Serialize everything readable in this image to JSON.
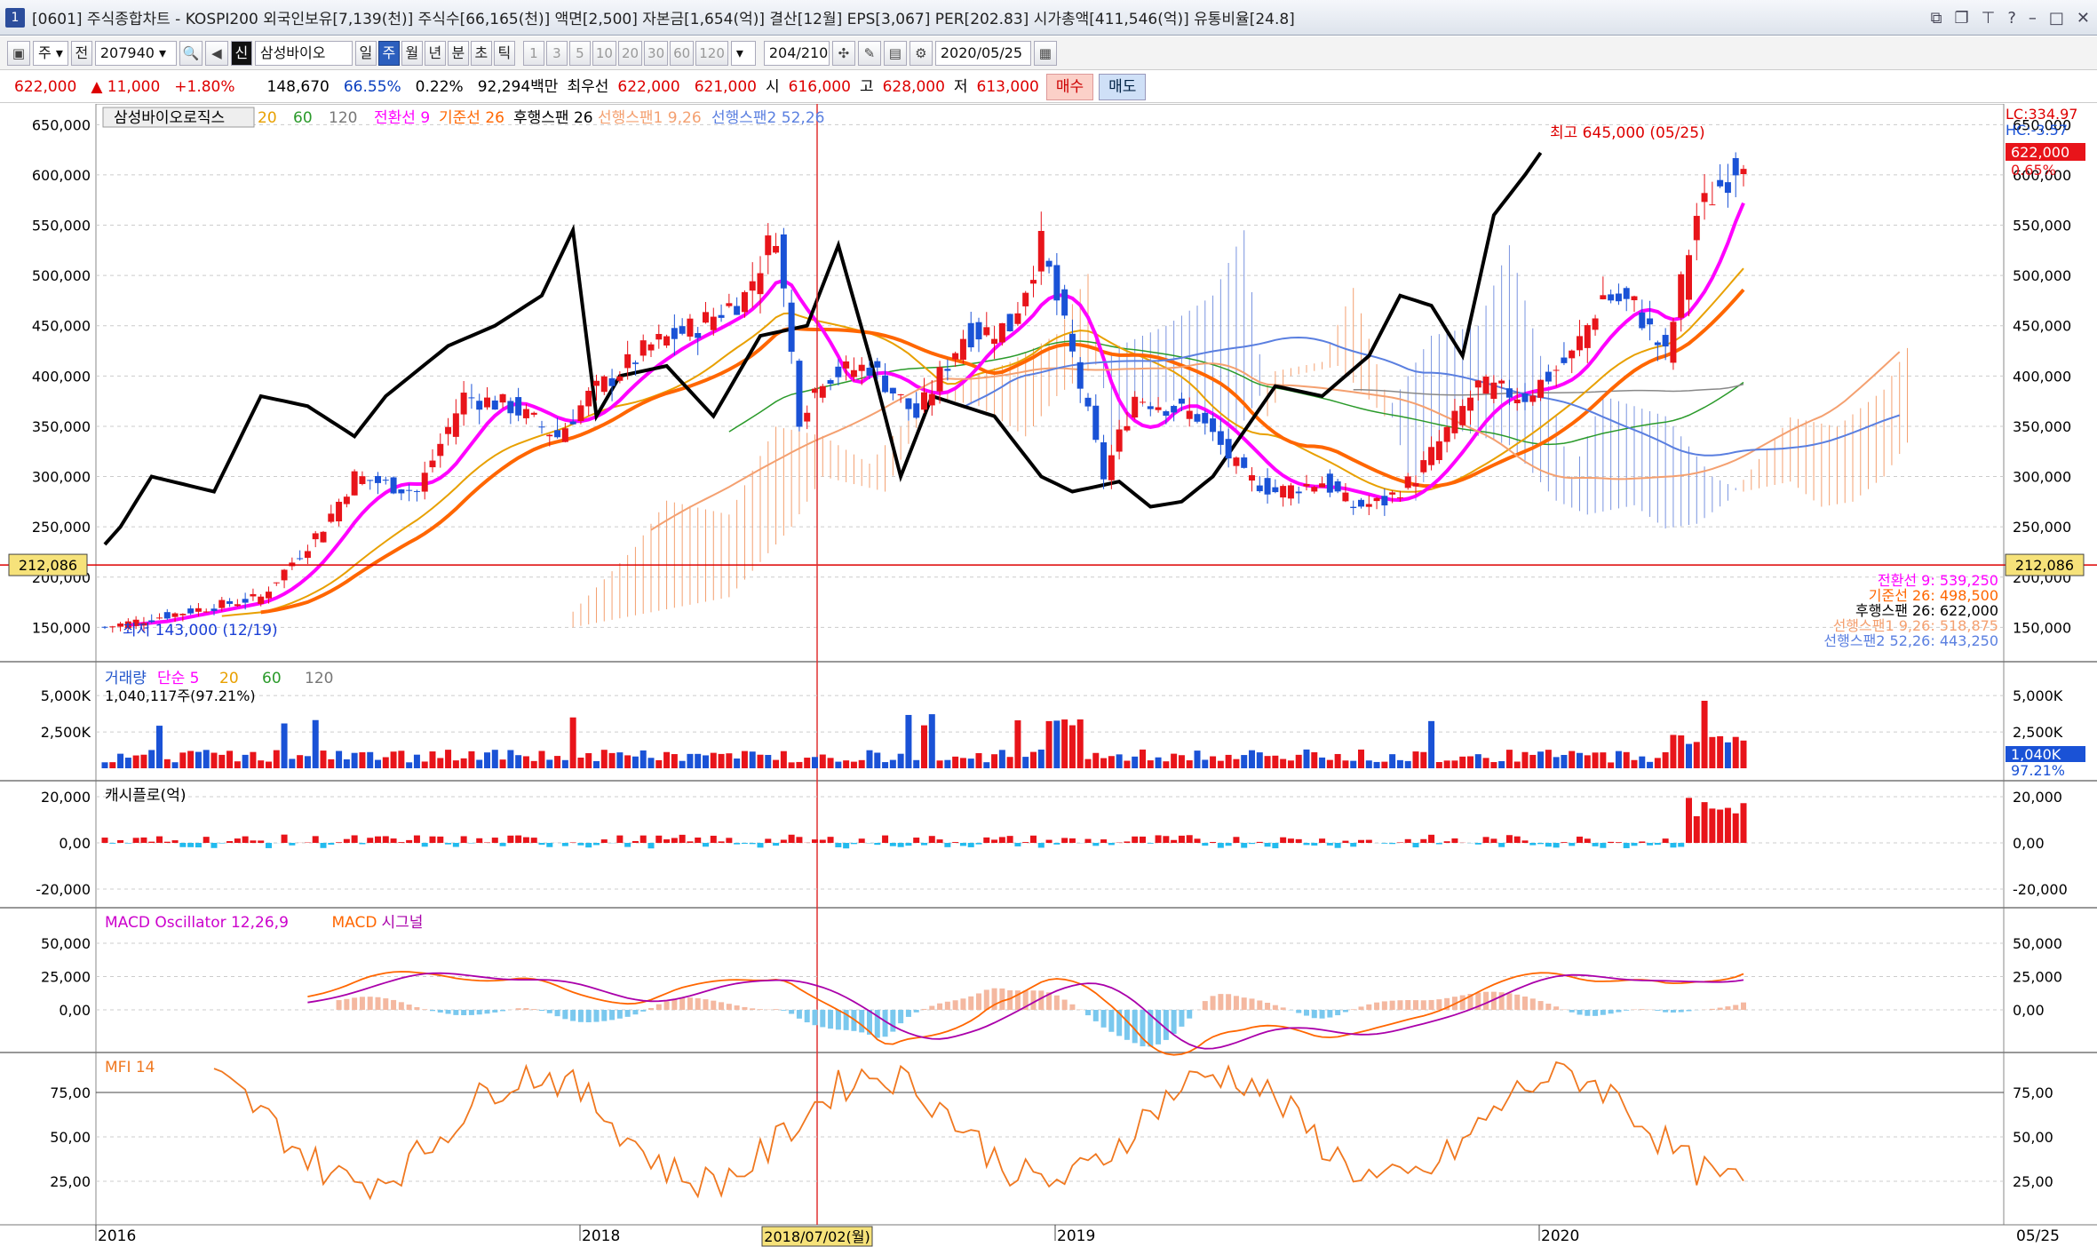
{
  "window": {
    "num": "1",
    "title": "[0601] 주식종합차트 - KOSPI200 외국인보유[7,139(천)] 주식수[66,165(천)] 액면[2,500] 자본금[1,654(억)] 결산[12월] EPS[3,067] PER[202.83] 시가총액[411,546(억)] 유통비율[24.8]"
  },
  "toolbar": {
    "unit": "주",
    "prev": "전",
    "code": "207940",
    "name": "삼성바이오",
    "name_tag": "신",
    "periods": [
      "일",
      "주",
      "월",
      "년",
      "분",
      "초",
      "틱"
    ],
    "active_period": "주",
    "nums": [
      "1",
      "3",
      "5",
      "10",
      "20",
      "30",
      "60",
      "120"
    ],
    "count": "204",
    "total": "/210",
    "date": "2020/05/25"
  },
  "quote": {
    "price": "622,000",
    "change": "▲ 11,000",
    "pct": "+1.80%",
    "volume": "148,670",
    "ratio": "66.55%",
    "turn": "0.22%",
    "amount": "92,294백만",
    "best_label": "최우선",
    "bid": "622,000",
    "ask": "621,000",
    "open_label": "시",
    "open": "616,000",
    "high_label": "고",
    "high": "628,000",
    "low_label": "저",
    "low": "613,000",
    "buy": "매수",
    "sell": "매도"
  },
  "main_panel": {
    "legend": [
      {
        "t": "삼성바이오로직스",
        "c": "#000"
      },
      {
        "t": "20",
        "c": "#e8a000"
      },
      {
        "t": "60",
        "c": "#2a9a2a"
      },
      {
        "t": "120",
        "c": "#777"
      },
      {
        "t": "전환선 9",
        "c": "#ff00ff"
      },
      {
        "t": "기준선 26",
        "c": "#ff6600"
      },
      {
        "t": "후행스팬 26",
        "c": "#000"
      },
      {
        "t": "선행스팬1 9,26",
        "c": "#f4a070"
      },
      {
        "t": "선행스팬2 52,26",
        "c": "#5a7fe0"
      }
    ],
    "high_note": "최고 645,000 (05/25)",
    "low_note": "최저 143,000 (12/19)",
    "lc": "LC:334.97",
    "hc": "HC:-3.57",
    "last_box": "622,000",
    "last_pct": "0.65%",
    "hline_label": "212,086",
    "right_vals": [
      {
        "t": "전환선 9: 539,250",
        "c": "#ff00ff"
      },
      {
        "t": "기준선 26: 498,500",
        "c": "#ff6600"
      },
      {
        "t": "후행스팬 26: 622,000",
        "c": "#000"
      },
      {
        "t": "선행스팬1 9,26: 518,875",
        "c": "#f4a070"
      },
      {
        "t": "선행스팬2 52,26: 443,250",
        "c": "#5a7fe0"
      }
    ],
    "y_ticks": [
      "650,000",
      "600,000",
      "550,000",
      "500,000",
      "450,000",
      "400,000",
      "350,000",
      "300,000",
      "250,000",
      "200,000",
      "150,000"
    ]
  },
  "volume_panel": {
    "legend": [
      {
        "t": "거래량",
        "c": "#2255cc"
      },
      {
        "t": "단순 5",
        "c": "#ff00ff"
      },
      {
        "t": "20",
        "c": "#e8a000"
      },
      {
        "t": "60",
        "c": "#2a9a2a"
      },
      {
        "t": "120",
        "c": "#777"
      }
    ],
    "sub": "1,040,117주(97.21%)",
    "y_ticks": [
      "5,000K",
      "2,500K"
    ],
    "last_box": "1,040K",
    "last_pct": "97.21%"
  },
  "cash_panel": {
    "legend": "캐시플로(억)",
    "y_ticks": [
      "20,000",
      "0,00",
      "-20,000"
    ]
  },
  "macd_panel": {
    "legend": [
      {
        "t": "MACD Oscillator 12,26,9",
        "c": "#cc00cc"
      },
      {
        "t": "MACD",
        "c": "#ff6600"
      },
      {
        "t": "시그널",
        "c": "#aa00aa"
      }
    ],
    "y_ticks": [
      "50,000",
      "25,000",
      "0,00"
    ]
  },
  "mfi_panel": {
    "legend": "MFI 14",
    "y_ticks": [
      "75,00",
      "50,00",
      "25,00"
    ]
  },
  "x_axis": {
    "labels": [
      "2016",
      "2018",
      "2019",
      "2020"
    ],
    "cursor": "2018/07/02(월)",
    "last": "05/25"
  },
  "colors": {
    "up": "#e8141a",
    "down": "#1a52d6",
    "conv": "#ff00ff",
    "base": "#ff6600",
    "lag": "#000000",
    "span1": "#f4a070",
    "span2": "#5a7fe0",
    "ma20": "#e8a000",
    "ma60": "#2a9a2a",
    "ma120": "#888888"
  }
}
